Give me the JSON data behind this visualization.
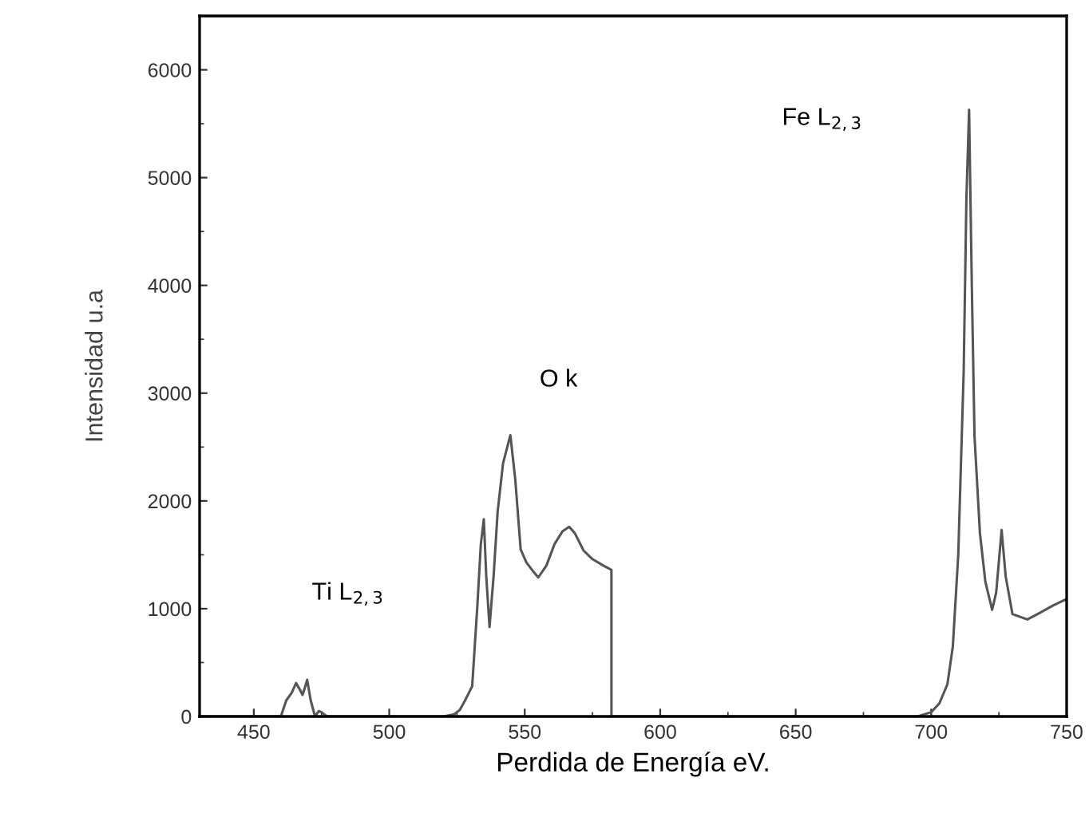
{
  "chart_data": {
    "type": "line",
    "xlabel": "Perdida de Energía eV.",
    "ylabel": "Intensidad u.a",
    "series": [
      {
        "color": "#555555",
        "x": [
          430,
          455,
          460,
          462,
          464,
          465.6,
          467,
          468,
          469,
          469.7,
          471,
          472.6,
          474,
          475,
          477,
          490,
          510,
          520,
          524,
          526,
          528,
          530.6,
          532.5,
          533.8,
          534.9,
          535.8,
          537,
          538.5,
          540,
          542,
          544.7,
          546.5,
          548.5,
          550.6,
          553,
          555,
          558,
          561,
          564,
          566.4,
          568.5,
          571.7,
          575,
          579,
          582,
          582.01,
          600,
          650,
          680,
          695,
          700,
          703,
          706,
          708,
          710,
          712,
          713,
          714,
          715,
          716,
          718,
          720,
          722.5,
          724,
          726,
          727.5,
          730,
          735.5,
          740,
          745,
          750
        ],
        "values": [
          0,
          0,
          0,
          150,
          220,
          310,
          250,
          200,
          280,
          340,
          150,
          0,
          50,
          40,
          0,
          0,
          0,
          0,
          20,
          60,
          150,
          280,
          1020,
          1600,
          1830,
          1300,
          830,
          1300,
          1900,
          2350,
          2610,
          2200,
          1550,
          1430,
          1350,
          1290,
          1400,
          1600,
          1720,
          1760,
          1700,
          1540,
          1460,
          1400,
          1360,
          0,
          0,
          0,
          0,
          0,
          40,
          120,
          300,
          650,
          1500,
          3200,
          4800,
          5630,
          4000,
          2600,
          1700,
          1250,
          990,
          1150,
          1730,
          1300,
          950,
          900,
          960,
          1030,
          1090
        ]
      }
    ],
    "xlim": [
      430,
      750
    ],
    "ylim": [
      0,
      6500
    ],
    "xticks": [
      450,
      500,
      550,
      600,
      650,
      700,
      750
    ],
    "yticks": [
      0,
      1000,
      2000,
      3000,
      4000,
      5000,
      6000
    ],
    "grid": false,
    "legend": false,
    "marker": "none",
    "line_style": "solid",
    "annotations": [
      "Ti L$_{2,3}$",
      "O k",
      "Fe L$_{2,3}$"
    ]
  }
}
